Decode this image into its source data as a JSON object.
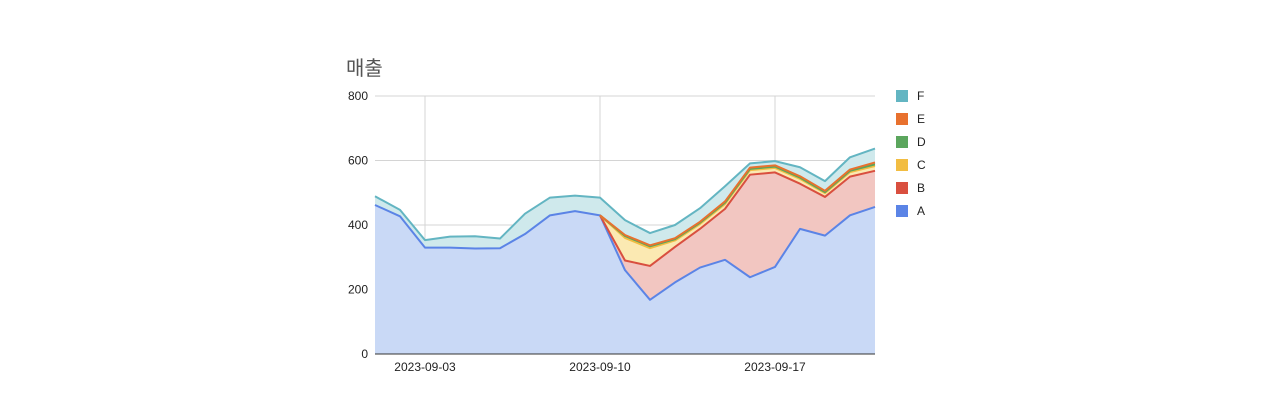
{
  "chart_data": {
    "type": "area",
    "stacked": true,
    "title": "매출",
    "xlabel": "",
    "ylabel": "",
    "x": [
      "2023-09-01",
      "2023-09-02",
      "2023-09-03",
      "2023-09-04",
      "2023-09-05",
      "2023-09-06",
      "2023-09-07",
      "2023-09-08",
      "2023-09-09",
      "2023-09-10",
      "2023-09-11",
      "2023-09-12",
      "2023-09-13",
      "2023-09-14",
      "2023-09-15",
      "2023-09-16",
      "2023-09-17",
      "2023-09-18",
      "2023-09-19",
      "2023-09-20",
      "2023-09-21"
    ],
    "x_tick_labels": [
      "2023-09-03",
      "2023-09-10",
      "2023-09-17"
    ],
    "y_ticks": [
      0,
      200,
      400,
      600,
      800
    ],
    "ylim": [
      0,
      800
    ],
    "grid": true,
    "legend_position": "right",
    "series": [
      {
        "name": "A",
        "color": "#5b84e6",
        "fill": "#c9d9f6",
        "values": [
          462,
          427,
          330,
          330,
          327,
          328,
          372,
          430,
          443,
          430,
          260,
          168,
          222,
          268,
          292,
          238,
          270,
          388,
          367,
          430,
          456
        ]
      },
      {
        "name": "B",
        "color": "#d94f3f",
        "fill": "#f2c6c1",
        "values": [
          0,
          0,
          0,
          0,
          0,
          0,
          0,
          0,
          0,
          0,
          30,
          105,
          110,
          120,
          158,
          318,
          293,
          140,
          120,
          120,
          112
        ]
      },
      {
        "name": "C",
        "color": "#f2bd42",
        "fill": "#fbe9b2",
        "values": [
          0,
          0,
          0,
          0,
          0,
          0,
          0,
          0,
          0,
          0,
          70,
          55,
          20,
          15,
          15,
          14,
          14,
          15,
          12,
          14,
          15
        ]
      },
      {
        "name": "D",
        "color": "#5ba65d",
        "fill": "#cde5cd",
        "values": [
          0,
          0,
          0,
          0,
          0,
          0,
          0,
          0,
          0,
          0,
          6,
          6,
          4,
          4,
          4,
          4,
          4,
          4,
          3,
          4,
          5
        ]
      },
      {
        "name": "E",
        "color": "#e8712e",
        "fill": "#f8d3bc",
        "values": [
          0,
          0,
          0,
          0,
          0,
          0,
          0,
          0,
          0,
          0,
          3,
          3,
          3,
          3,
          4,
          4,
          4,
          4,
          4,
          4,
          6
        ]
      },
      {
        "name": "F",
        "color": "#63b5c2",
        "fill": "#cfe9ec",
        "values": [
          27,
          20,
          23,
          34,
          38,
          30,
          63,
          55,
          48,
          55,
          46,
          38,
          41,
          42,
          47,
          13,
          13,
          28,
          30,
          38,
          43
        ]
      }
    ]
  }
}
